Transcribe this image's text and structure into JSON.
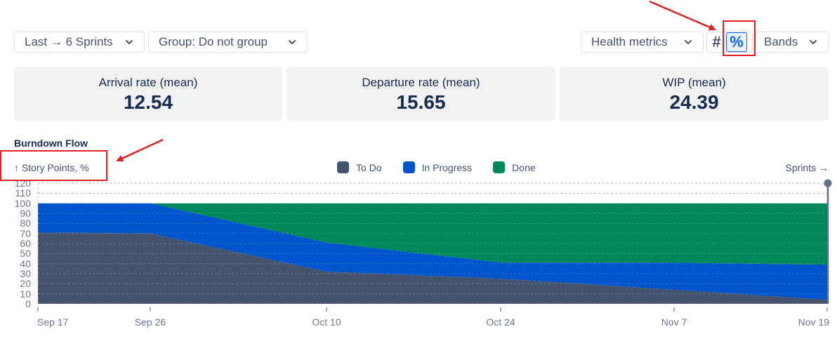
{
  "toolbar": {
    "period_label": "Last → 6 Sprints",
    "group_label": "Group: Do not group",
    "metrics_label": "Health metrics",
    "count_toggle": "#",
    "percent_toggle": "%",
    "percent_active": true,
    "bands_label": "Bands"
  },
  "metrics": [
    {
      "label": "Arrival rate (mean)",
      "value": "12.54"
    },
    {
      "label": "Departure rate (mean)",
      "value": "15.65"
    },
    {
      "label": "WIP (mean)",
      "value": "24.39"
    }
  ],
  "chart": {
    "title": "Burndown Flow",
    "y_unit": "↑ Story Points, %",
    "x_unit": "Sprints →",
    "legend": [
      {
        "label": "To Do",
        "color": "#44546f"
      },
      {
        "label": "In Progress",
        "color": "#0055cc"
      },
      {
        "label": "Done",
        "color": "#00875a"
      }
    ]
  },
  "chart_data": {
    "type": "area",
    "stacked": true,
    "title": "Burndown Flow",
    "xlabel": "Sprints",
    "ylabel": "Story Points, %",
    "ylim": [
      0,
      120
    ],
    "yticks": [
      0,
      10,
      20,
      30,
      40,
      50,
      60,
      70,
      80,
      90,
      100,
      110,
      120
    ],
    "categories": [
      "Sep 17",
      "Sep 26",
      "Oct 10",
      "Oct 24",
      "Nov 7",
      "Nov 19"
    ],
    "series": [
      {
        "name": "To Do",
        "color": "#44546f",
        "values": [
          71,
          70,
          32,
          25,
          14,
          4
        ]
      },
      {
        "name": "In Progress",
        "color": "#0055cc",
        "values": [
          29,
          30,
          29,
          16,
          27,
          35
        ]
      },
      {
        "name": "Done",
        "color": "#00875a",
        "values": [
          0,
          0,
          39,
          59,
          59,
          61
        ]
      }
    ],
    "grid": true,
    "legend_position": "top"
  }
}
